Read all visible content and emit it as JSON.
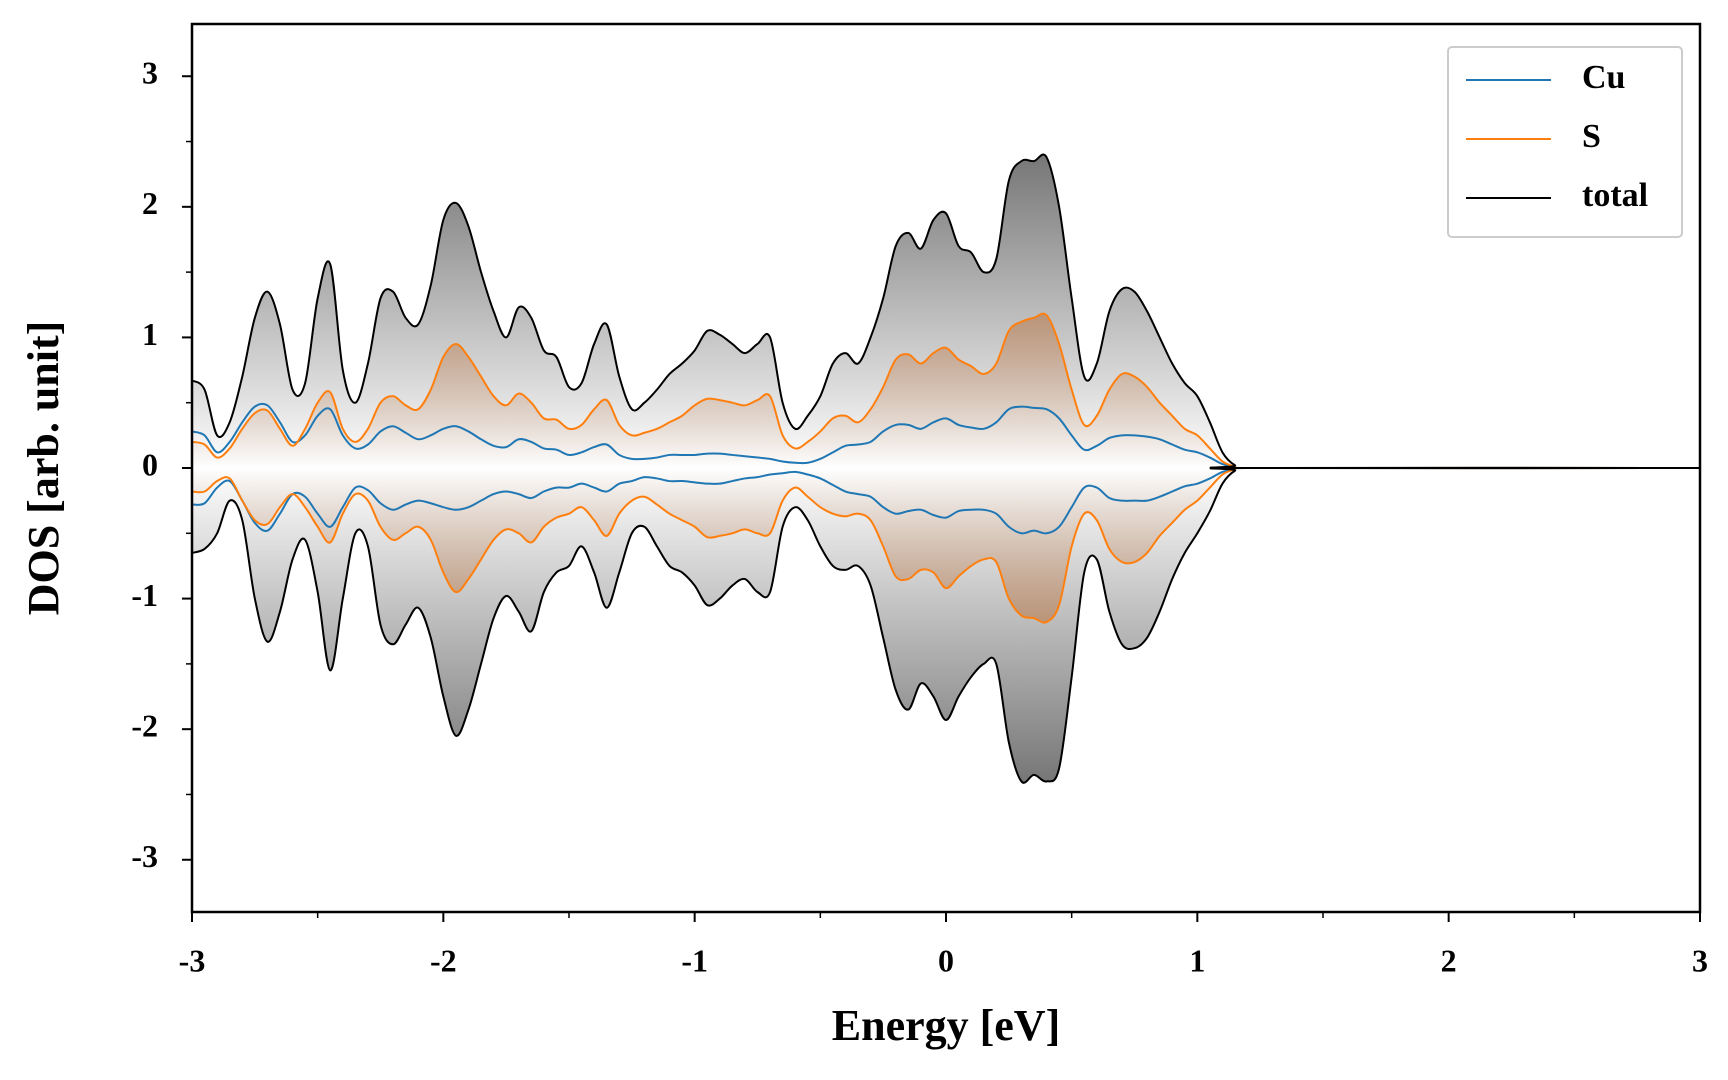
{
  "chart_data": {
    "type": "line",
    "xlabel": "Energy [eV]",
    "ylabel": "DOS [arb. unit]",
    "xlim": [
      -3,
      3
    ],
    "ylim": [
      -3.4,
      3.4
    ],
    "xticks": [
      -3,
      -2,
      -1,
      0,
      1,
      2,
      3
    ],
    "yticks": [
      -3,
      -2,
      -1,
      0,
      1,
      2,
      3
    ],
    "xminorticks": [
      -2.5,
      -1.5,
      -0.5,
      0.5,
      1.5,
      2.5
    ],
    "yminorticks": [
      -2.5,
      -1.5,
      -0.5,
      0.5,
      1.5,
      2.5
    ],
    "legend": "upper right",
    "x": [
      -3,
      -2.95,
      -2.9,
      -2.85,
      -2.8,
      -2.75,
      -2.7,
      -2.65,
      -2.6,
      -2.55,
      -2.5,
      -2.45,
      -2.4,
      -2.35,
      -2.3,
      -2.25,
      -2.2,
      -2.15,
      -2.1,
      -2.05,
      -2,
      -1.95,
      -1.9,
      -1.85,
      -1.8,
      -1.75,
      -1.7,
      -1.65,
      -1.6,
      -1.55,
      -1.5,
      -1.45,
      -1.4,
      -1.35,
      -1.3,
      -1.25,
      -1.2,
      -1.15,
      -1.1,
      -1.05,
      -1,
      -0.95,
      -0.9,
      -0.85,
      -0.8,
      -0.75,
      -0.7,
      -0.65,
      -0.6,
      -0.55,
      -0.5,
      -0.45,
      -0.4,
      -0.35,
      -0.3,
      -0.25,
      -0.2,
      -0.15,
      -0.1,
      -0.05,
      0,
      0.05,
      0.1,
      0.15,
      0.2,
      0.25,
      0.3,
      0.35,
      0.4,
      0.45,
      0.5,
      0.55,
      0.6,
      0.65,
      0.7,
      0.75,
      0.8,
      0.85,
      0.9,
      0.95,
      1,
      1.05,
      1.1,
      1.15,
      1.2,
      3
    ],
    "series": [
      {
        "name": "Cu",
        "color": "#1f77b4",
        "up": [
          0.28,
          0.25,
          0.12,
          0.2,
          0.35,
          0.47,
          0.48,
          0.35,
          0.2,
          0.25,
          0.4,
          0.45,
          0.25,
          0.15,
          0.18,
          0.28,
          0.32,
          0.27,
          0.22,
          0.25,
          0.3,
          0.32,
          0.28,
          0.22,
          0.17,
          0.16,
          0.22,
          0.2,
          0.15,
          0.14,
          0.1,
          0.12,
          0.16,
          0.18,
          0.1,
          0.07,
          0.07,
          0.08,
          0.1,
          0.1,
          0.1,
          0.11,
          0.11,
          0.1,
          0.09,
          0.08,
          0.07,
          0.05,
          0.04,
          0.04,
          0.07,
          0.12,
          0.17,
          0.18,
          0.2,
          0.28,
          0.33,
          0.33,
          0.3,
          0.35,
          0.38,
          0.33,
          0.31,
          0.3,
          0.35,
          0.45,
          0.47,
          0.46,
          0.45,
          0.38,
          0.25,
          0.14,
          0.17,
          0.23,
          0.25,
          0.25,
          0.24,
          0.22,
          0.18,
          0.14,
          0.12,
          0.08,
          0.03,
          0.01,
          0,
          0
        ],
        "down": [
          -0.28,
          -0.27,
          -0.15,
          -0.1,
          -0.25,
          -0.42,
          -0.48,
          -0.35,
          -0.2,
          -0.22,
          -0.35,
          -0.45,
          -0.3,
          -0.15,
          -0.17,
          -0.27,
          -0.32,
          -0.28,
          -0.25,
          -0.27,
          -0.3,
          -0.32,
          -0.3,
          -0.25,
          -0.2,
          -0.18,
          -0.2,
          -0.23,
          -0.18,
          -0.15,
          -0.15,
          -0.12,
          -0.15,
          -0.18,
          -0.12,
          -0.1,
          -0.07,
          -0.08,
          -0.1,
          -0.1,
          -0.11,
          -0.12,
          -0.12,
          -0.1,
          -0.08,
          -0.07,
          -0.05,
          -0.04,
          -0.03,
          -0.05,
          -0.08,
          -0.13,
          -0.18,
          -0.2,
          -0.22,
          -0.3,
          -0.35,
          -0.33,
          -0.32,
          -0.36,
          -0.38,
          -0.33,
          -0.32,
          -0.32,
          -0.35,
          -0.45,
          -0.5,
          -0.48,
          -0.5,
          -0.45,
          -0.3,
          -0.15,
          -0.15,
          -0.23,
          -0.25,
          -0.25,
          -0.25,
          -0.22,
          -0.18,
          -0.14,
          -0.12,
          -0.08,
          -0.03,
          -0.01,
          0,
          0
        ]
      },
      {
        "name": "S",
        "color": "#ff7f0e",
        "fill": "#b8662a",
        "up": [
          0.2,
          0.18,
          0.08,
          0.15,
          0.3,
          0.42,
          0.44,
          0.3,
          0.17,
          0.3,
          0.5,
          0.58,
          0.3,
          0.2,
          0.3,
          0.5,
          0.55,
          0.48,
          0.45,
          0.6,
          0.85,
          0.95,
          0.85,
          0.7,
          0.55,
          0.48,
          0.57,
          0.5,
          0.38,
          0.37,
          0.3,
          0.33,
          0.45,
          0.52,
          0.33,
          0.25,
          0.27,
          0.3,
          0.35,
          0.4,
          0.48,
          0.53,
          0.52,
          0.5,
          0.48,
          0.52,
          0.55,
          0.25,
          0.15,
          0.2,
          0.28,
          0.38,
          0.4,
          0.35,
          0.45,
          0.62,
          0.83,
          0.87,
          0.8,
          0.88,
          0.92,
          0.83,
          0.78,
          0.72,
          0.8,
          1.05,
          1.12,
          1.15,
          1.17,
          0.95,
          0.6,
          0.33,
          0.4,
          0.6,
          0.72,
          0.7,
          0.62,
          0.5,
          0.4,
          0.3,
          0.25,
          0.15,
          0.05,
          0.01,
          0,
          0
        ],
        "down": [
          -0.18,
          -0.18,
          -0.1,
          -0.08,
          -0.25,
          -0.4,
          -0.43,
          -0.3,
          -0.2,
          -0.3,
          -0.45,
          -0.57,
          -0.35,
          -0.2,
          -0.25,
          -0.45,
          -0.55,
          -0.5,
          -0.45,
          -0.55,
          -0.8,
          -0.95,
          -0.85,
          -0.7,
          -0.55,
          -0.47,
          -0.5,
          -0.57,
          -0.45,
          -0.38,
          -0.35,
          -0.3,
          -0.4,
          -0.52,
          -0.35,
          -0.25,
          -0.22,
          -0.28,
          -0.35,
          -0.4,
          -0.45,
          -0.53,
          -0.52,
          -0.5,
          -0.47,
          -0.5,
          -0.5,
          -0.25,
          -0.15,
          -0.22,
          -0.3,
          -0.35,
          -0.37,
          -0.35,
          -0.4,
          -0.6,
          -0.83,
          -0.85,
          -0.78,
          -0.8,
          -0.92,
          -0.83,
          -0.75,
          -0.7,
          -0.72,
          -1,
          -1.13,
          -1.15,
          -1.18,
          -1.05,
          -0.6,
          -0.35,
          -0.4,
          -0.62,
          -0.72,
          -0.72,
          -0.65,
          -0.52,
          -0.42,
          -0.32,
          -0.25,
          -0.15,
          -0.05,
          -0.01,
          0,
          0
        ]
      },
      {
        "name": "total",
        "color": "#000000",
        "fill": "#6e6e6e",
        "up": [
          0.67,
          0.6,
          0.25,
          0.35,
          0.7,
          1.15,
          1.35,
          1.1,
          0.6,
          0.65,
          1.3,
          1.56,
          0.75,
          0.5,
          0.8,
          1.3,
          1.35,
          1.15,
          1.1,
          1.4,
          1.9,
          2.03,
          1.85,
          1.5,
          1.2,
          1,
          1.23,
          1.15,
          0.9,
          0.85,
          0.62,
          0.65,
          0.95,
          1.1,
          0.7,
          0.45,
          0.5,
          0.6,
          0.72,
          0.8,
          0.9,
          1.05,
          1.02,
          0.95,
          0.88,
          0.95,
          1,
          0.5,
          0.3,
          0.4,
          0.55,
          0.8,
          0.88,
          0.8,
          1,
          1.3,
          1.7,
          1.8,
          1.68,
          1.9,
          1.95,
          1.7,
          1.65,
          1.5,
          1.6,
          2.2,
          2.35,
          2.35,
          2.38,
          2,
          1.3,
          0.7,
          0.8,
          1.2,
          1.37,
          1.35,
          1.2,
          1,
          0.8,
          0.65,
          0.55,
          0.35,
          0.12,
          0.02,
          0,
          0
        ],
        "down": [
          -0.65,
          -0.62,
          -0.5,
          -0.25,
          -0.4,
          -1,
          -1.33,
          -1.1,
          -0.7,
          -0.55,
          -0.95,
          -1.55,
          -1,
          -0.5,
          -0.6,
          -1.2,
          -1.35,
          -1.2,
          -1.07,
          -1.3,
          -1.75,
          -2.05,
          -1.85,
          -1.5,
          -1.15,
          -0.98,
          -1.1,
          -1.25,
          -0.95,
          -0.8,
          -0.75,
          -0.6,
          -0.8,
          -1.07,
          -0.8,
          -0.5,
          -0.45,
          -0.6,
          -0.75,
          -0.8,
          -0.9,
          -1.05,
          -1,
          -0.9,
          -0.85,
          -0.95,
          -0.95,
          -0.45,
          -0.3,
          -0.4,
          -0.6,
          -0.75,
          -0.78,
          -0.75,
          -0.9,
          -1.3,
          -1.7,
          -1.85,
          -1.65,
          -1.75,
          -1.93,
          -1.75,
          -1.6,
          -1.5,
          -1.5,
          -2.1,
          -2.4,
          -2.35,
          -2.4,
          -2.3,
          -1.6,
          -0.8,
          -0.7,
          -1.1,
          -1.35,
          -1.38,
          -1.3,
          -1.1,
          -0.85,
          -0.65,
          -0.5,
          -0.33,
          -0.12,
          -0.02,
          0,
          0
        ]
      }
    ]
  }
}
